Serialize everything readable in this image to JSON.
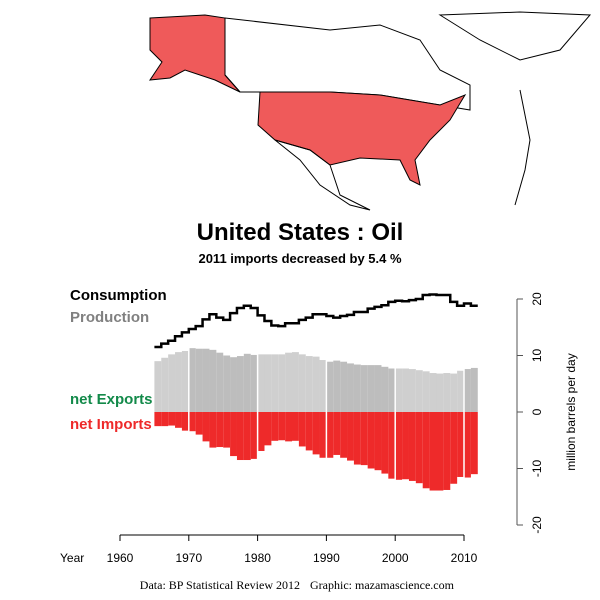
{
  "chart_data": {
    "type": "bar",
    "title": "United States :  Oil",
    "subtitle": "2011 imports decreased by 5.4 %",
    "xlabel": "Year",
    "ylabel": "million barrels per day",
    "xlim": [
      1960,
      2012
    ],
    "ylim": [
      -20,
      20
    ],
    "xticks": [
      1960,
      1970,
      1980,
      1990,
      2000,
      2010
    ],
    "yticks": [
      -20,
      -10,
      0,
      10,
      20
    ],
    "legend": {
      "consumption": "Consumption",
      "production": "Production",
      "exports": "net Exports",
      "imports": "net Imports"
    },
    "years": [
      1965,
      1966,
      1967,
      1968,
      1969,
      1970,
      1971,
      1972,
      1973,
      1974,
      1975,
      1976,
      1977,
      1978,
      1979,
      1980,
      1981,
      1982,
      1983,
      1984,
      1985,
      1986,
      1987,
      1988,
      1989,
      1990,
      1991,
      1992,
      1993,
      1994,
      1995,
      1996,
      1997,
      1998,
      1999,
      2000,
      2001,
      2002,
      2003,
      2004,
      2005,
      2006,
      2007,
      2008,
      2009,
      2010,
      2011
    ],
    "consumption": [
      11.5,
      12.1,
      12.6,
      13.4,
      14.1,
      14.7,
      15.2,
      16.4,
      17.3,
      16.7,
      16.3,
      17.5,
      18.4,
      18.8,
      18.4,
      17.1,
      16.1,
      15.3,
      15.2,
      15.7,
      15.7,
      16.3,
      16.7,
      17.3,
      17.3,
      17.0,
      16.7,
      17.0,
      17.2,
      17.7,
      17.7,
      18.3,
      18.6,
      18.9,
      19.5,
      19.7,
      19.6,
      19.8,
      20.0,
      20.7,
      20.8,
      20.7,
      20.7,
      19.5,
      18.8,
      19.2,
      18.8
    ],
    "production": [
      9.0,
      9.6,
      10.2,
      10.6,
      10.8,
      11.3,
      11.2,
      11.2,
      11.0,
      10.5,
      10.0,
      9.7,
      9.9,
      10.3,
      10.1,
      10.2,
      10.2,
      10.2,
      10.2,
      10.5,
      10.6,
      10.2,
      9.9,
      9.8,
      9.2,
      8.9,
      9.1,
      8.9,
      8.6,
      8.4,
      8.3,
      8.3,
      8.3,
      8.0,
      7.7,
      7.7,
      7.7,
      7.6,
      7.4,
      7.2,
      6.9,
      6.8,
      6.9,
      6.8,
      7.3,
      7.6,
      7.8
    ],
    "colors": {
      "consumption": "#000000",
      "production_light": "#cfcfcf",
      "production_dark": "#bdbdbd",
      "imports": "#ee2a2a",
      "exports_label": "#138a4a",
      "production_label": "#808080",
      "map_fill": "#ef5a5a"
    }
  },
  "footer": {
    "source": "Data: BP Statistical Review 2012",
    "graphic": "Graphic: mazamascience.com"
  }
}
